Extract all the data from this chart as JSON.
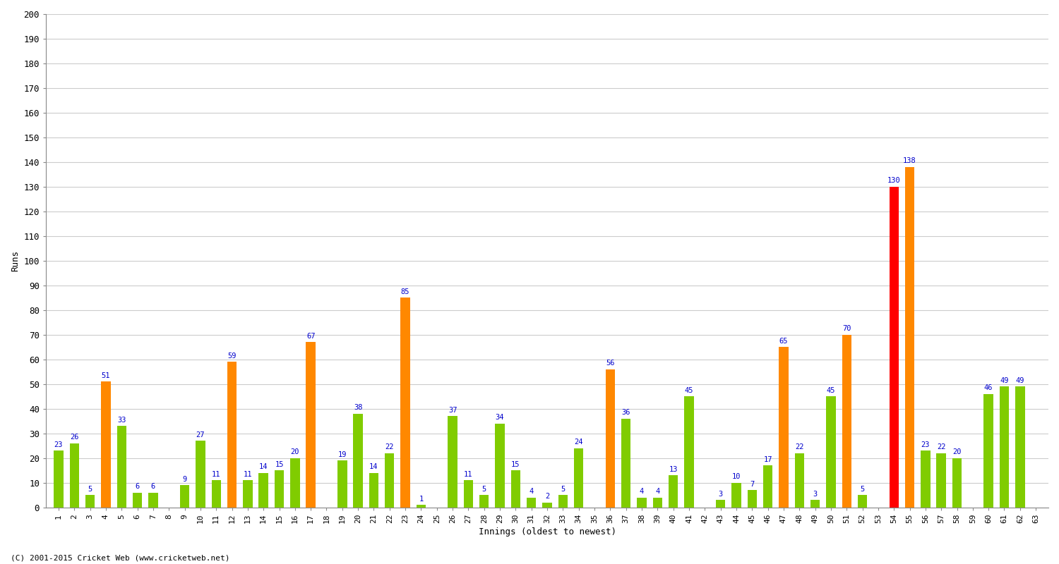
{
  "innings": [
    1,
    2,
    3,
    4,
    5,
    6,
    7,
    8,
    9,
    10,
    11,
    12,
    13,
    14,
    15,
    16,
    17,
    18,
    19,
    20,
    21,
    22,
    23,
    24,
    25,
    26,
    27,
    28,
    29,
    30,
    31,
    32,
    33,
    34,
    35,
    36,
    37,
    38,
    39,
    40,
    41,
    42,
    43,
    44,
    45,
    46,
    47,
    48,
    49,
    50,
    51,
    52,
    53,
    54,
    55,
    56,
    57,
    58,
    59,
    60,
    61,
    62,
    63
  ],
  "values": [
    23,
    26,
    5,
    51,
    33,
    6,
    6,
    0,
    9,
    27,
    11,
    59,
    11,
    14,
    15,
    20,
    67,
    0,
    19,
    38,
    14,
    22,
    85,
    1,
    0,
    37,
    11,
    5,
    34,
    15,
    4,
    2,
    5,
    24,
    0,
    56,
    36,
    4,
    4,
    13,
    45,
    0,
    3,
    10,
    7,
    17,
    65,
    22,
    3,
    45,
    70,
    5,
    0,
    130,
    138,
    23,
    22,
    20,
    0,
    46,
    49,
    49,
    0
  ],
  "colors": [
    "#80cc00",
    "#80cc00",
    "#80cc00",
    "#ff8800",
    "#80cc00",
    "#80cc00",
    "#80cc00",
    "#80cc00",
    "#80cc00",
    "#80cc00",
    "#80cc00",
    "#ff8800",
    "#80cc00",
    "#80cc00",
    "#80cc00",
    "#80cc00",
    "#ff8800",
    "#80cc00",
    "#80cc00",
    "#80cc00",
    "#80cc00",
    "#80cc00",
    "#ff8800",
    "#80cc00",
    "#80cc00",
    "#80cc00",
    "#80cc00",
    "#80cc00",
    "#80cc00",
    "#80cc00",
    "#80cc00",
    "#80cc00",
    "#80cc00",
    "#80cc00",
    "#80cc00",
    "#ff8800",
    "#80cc00",
    "#80cc00",
    "#80cc00",
    "#80cc00",
    "#80cc00",
    "#80cc00",
    "#80cc00",
    "#80cc00",
    "#80cc00",
    "#80cc00",
    "#ff8800",
    "#80cc00",
    "#80cc00",
    "#80cc00",
    "#ff8800",
    "#80cc00",
    "#80cc00",
    "#ff0000",
    "#ff8800",
    "#80cc00",
    "#80cc00",
    "#80cc00",
    "#80cc00",
    "#80cc00",
    "#80cc00",
    "#80cc00",
    "#80cc00"
  ],
  "xlabel": "Innings (oldest to newest)",
  "ylabel": "Runs",
  "ylim": [
    0,
    200
  ],
  "yticks": [
    0,
    10,
    20,
    30,
    40,
    50,
    60,
    70,
    80,
    90,
    100,
    110,
    120,
    130,
    140,
    150,
    160,
    170,
    180,
    190,
    200
  ],
  "background_color": "#ffffff",
  "grid_color": "#cccccc",
  "bar_label_color": "#0000cc",
  "footer": "(C) 2001-2015 Cricket Web (www.cricketweb.net)"
}
